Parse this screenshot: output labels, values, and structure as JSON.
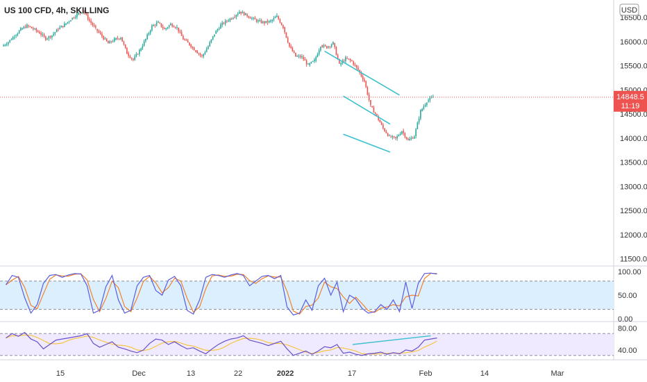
{
  "chart_data": {
    "type": "candlestick",
    "title": "US 100 CFD, 4h, SKILLING",
    "currency": "USD",
    "colors": {
      "up": "#26a69a",
      "down": "#ef5350",
      "trendline": "#3cc1cf",
      "price_line": "#ef5350",
      "price_label_bg": "#ef5350",
      "stoch_k": "#5b5be0",
      "stoch_d": "#f0832a",
      "stoch_band": "#dcefff",
      "rsi_line": "#6a4fc8",
      "rsi_ma": "#f5c542",
      "rsi_band": "#efeaff"
    },
    "price_axis": {
      "ticks": [
        "16500.0",
        "16000.0",
        "15500.0",
        "15000.0",
        "14500.0",
        "14000.0",
        "13500.0",
        "13000.0",
        "12500.0",
        "12000.0",
        "11500.0"
      ],
      "tick_values": [
        16500,
        16000,
        15500,
        15000,
        14500,
        14000,
        13500,
        13000,
        12500,
        12000,
        11500
      ],
      "ylim": [
        11350,
        16860
      ]
    },
    "current_price": {
      "value": 14848.5,
      "label": "14848.5",
      "countdown": "11:19"
    },
    "x_axis": {
      "ticks": [
        "15",
        "Dec",
        "13",
        "22",
        "2022",
        "17",
        "Feb",
        "14",
        "Mar"
      ],
      "bold_ticks": [
        "2022"
      ]
    },
    "price_series": [
      15900,
      15990,
      16120,
      16250,
      16330,
      16260,
      16180,
      16060,
      16130,
      16260,
      16350,
      16460,
      16560,
      16640,
      16430,
      16260,
      16110,
      15960,
      16040,
      16090,
      15760,
      15620,
      15810,
      16050,
      16320,
      16390,
      16250,
      16360,
      16290,
      16050,
      15940,
      15810,
      15690,
      15900,
      16160,
      16340,
      16430,
      16510,
      16620,
      16560,
      16480,
      16420,
      16390,
      16420,
      16520,
      16300,
      15900,
      15690,
      15680,
      15510,
      15600,
      15920,
      15880,
      15970,
      15520,
      15650,
      15590,
      15410,
      15180,
      14660,
      14450,
      14200,
      14030,
      13990,
      14150,
      13950,
      14040,
      14560,
      14760,
      14850
    ],
    "trendlines": [
      {
        "from": [
          51.5,
          15800
        ],
        "to": [
          63.5,
          14890
        ]
      },
      {
        "from": [
          54.5,
          14870
        ],
        "to": [
          62,
          14290
        ]
      },
      {
        "from": [
          54.5,
          14080
        ],
        "to": [
          62,
          13710
        ]
      }
    ],
    "stochastic": {
      "ticks": [
        "100.00",
        "50.00",
        "0.00"
      ],
      "tick_values": [
        100,
        50,
        0
      ],
      "levels": [
        80,
        20
      ],
      "ylim": [
        -6,
        112
      ],
      "k": [
        72,
        92,
        88,
        45,
        12,
        30,
        75,
        92,
        94,
        88,
        93,
        96,
        95,
        70,
        12,
        18,
        68,
        92,
        40,
        12,
        18,
        70,
        88,
        92,
        60,
        50,
        82,
        90,
        70,
        18,
        10,
        40,
        88,
        94,
        92,
        88,
        93,
        96,
        92,
        70,
        80,
        90,
        92,
        85,
        92,
        25,
        8,
        12,
        40,
        18,
        70,
        86,
        50,
        78,
        15,
        50,
        42,
        22,
        12,
        15,
        30,
        20,
        40,
        15,
        78,
        22,
        75,
        96,
        97,
        95
      ]
    },
    "rsi": {
      "ticks": [
        "80.00",
        "40.00"
      ],
      "tick_values": [
        80,
        40
      ],
      "levels": [
        70,
        30
      ],
      "ylim": [
        22,
        92
      ],
      "values": [
        62,
        70,
        65,
        72,
        60,
        55,
        42,
        50,
        58,
        60,
        62,
        64,
        66,
        70,
        52,
        45,
        50,
        55,
        45,
        42,
        38,
        35,
        40,
        52,
        60,
        58,
        50,
        55,
        48,
        42,
        44,
        38,
        33,
        42,
        50,
        56,
        60,
        62,
        66,
        58,
        55,
        52,
        48,
        52,
        56,
        42,
        30,
        34,
        38,
        32,
        38,
        46,
        44,
        50,
        34,
        36,
        32,
        30,
        33,
        34,
        36,
        32,
        35,
        33,
        40,
        38,
        45,
        58,
        60,
        62
      ]
    }
  }
}
